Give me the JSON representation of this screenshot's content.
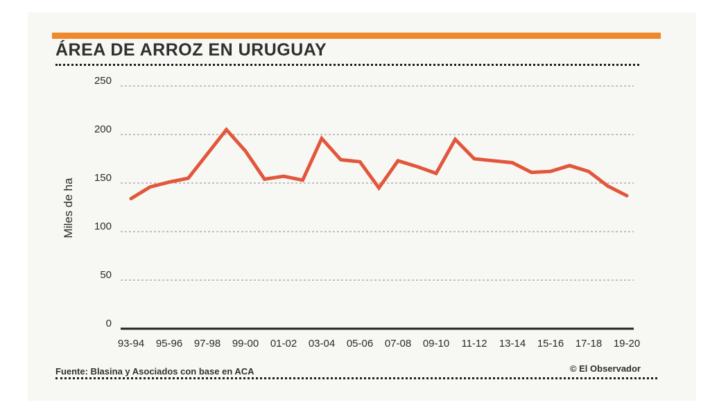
{
  "chart_data": {
    "type": "line",
    "title": "ÁREA DE ARROZ EN URUGUAY",
    "ylabel": "Miles de ha",
    "xlabel": "",
    "ylim": [
      0,
      250
    ],
    "yticks": [
      0,
      50,
      100,
      150,
      200,
      250
    ],
    "x": [
      "93-94",
      "94-95",
      "95-96",
      "96-97",
      "97-98",
      "98-99",
      "99-00",
      "00-01",
      "01-02",
      "02-03",
      "03-04",
      "04-05",
      "05-06",
      "06-07",
      "07-08",
      "08-09",
      "09-10",
      "10-11",
      "11-12",
      "12-13",
      "13-14",
      "14-15",
      "15-16",
      "16-17",
      "17-18",
      "18-19",
      "19-20"
    ],
    "xtick_labels": [
      "93-94",
      "95-96",
      "97-98",
      "99-00",
      "01-02",
      "03-04",
      "05-06",
      "07-08",
      "09-10",
      "11-12",
      "13-14",
      "15-16",
      "17-18",
      "19-20"
    ],
    "series": [
      {
        "values": [
          134,
          146,
          151,
          155,
          180,
          205,
          183,
          154,
          157,
          153,
          196,
          174,
          172,
          145,
          173,
          167,
          160,
          195,
          175,
          173,
          171,
          161,
          162,
          168,
          162,
          147,
          137
        ],
        "color": "#e2573b"
      }
    ],
    "grid": true,
    "source": "Fuente: Blasina y Asociados con base en ACA",
    "credit": "© El Observador"
  }
}
